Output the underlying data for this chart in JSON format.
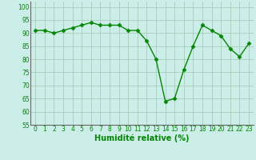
{
  "x": [
    0,
    1,
    2,
    3,
    4,
    5,
    6,
    7,
    8,
    9,
    10,
    11,
    12,
    13,
    14,
    15,
    16,
    17,
    18,
    19,
    20,
    21,
    22,
    23
  ],
  "y": [
    91,
    91,
    90,
    91,
    92,
    93,
    94,
    93,
    93,
    93,
    91,
    91,
    87,
    80,
    64,
    65,
    76,
    85,
    93,
    91,
    89,
    84,
    81,
    86
  ],
  "line_color": "#008800",
  "marker": "D",
  "bg_color": "#cceee8",
  "grid_color": "#aaccbb",
  "xlabel": "Humidité relative (%)",
  "xlabel_color": "#008800",
  "ylim": [
    55,
    102
  ],
  "yticks": [
    55,
    60,
    65,
    70,
    75,
    80,
    85,
    90,
    95,
    100
  ],
  "xticks": [
    0,
    1,
    2,
    3,
    4,
    5,
    6,
    7,
    8,
    9,
    10,
    11,
    12,
    13,
    14,
    15,
    16,
    17,
    18,
    19,
    20,
    21,
    22,
    23
  ],
  "tick_color": "#008800",
  "tick_fontsize": 5.5,
  "xlabel_fontsize": 7.0,
  "linewidth": 1.0,
  "markersize": 2.5
}
